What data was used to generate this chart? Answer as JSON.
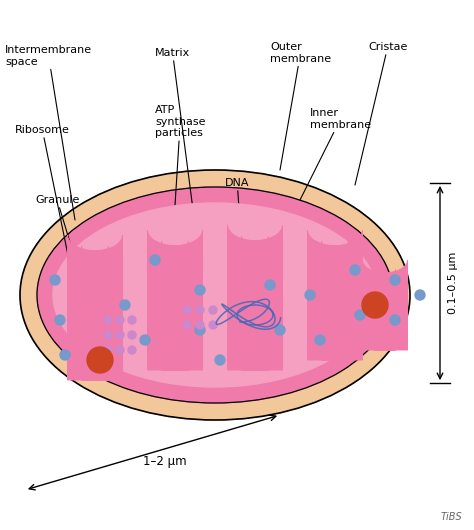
{
  "background_color": "#ffffff",
  "outer_color": "#f2c89a",
  "inner_color": "#f07aaa",
  "matrix_color": "#f5a0c0",
  "crista_color": "#f07aaa",
  "crista_edge": "#cc4488",
  "dot_blue": "#7799cc",
  "dot_red": "#cc4422",
  "dot_purple": "#cc88cc",
  "dna_color": "#4466bb",
  "label_fontsize": 8.0,
  "dim_label_width": "1–2 μm",
  "dim_label_height": "0.1–0.5 μm",
  "tibs_text": "TiBS",
  "figsize": [
    4.74,
    5.3
  ],
  "dpi": 100
}
